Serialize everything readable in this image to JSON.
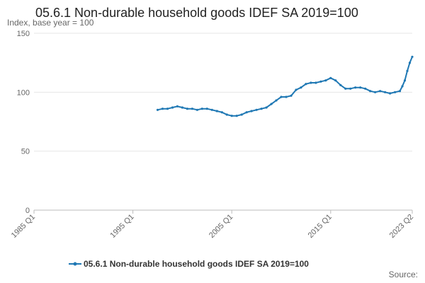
{
  "chart_data": {
    "type": "line",
    "title": "05.6.1 Non-durable household goods IDEF SA 2019=100",
    "subtitle": "Index, base year = 100",
    "ylabel": "Index, base year = 100",
    "xlabel": "",
    "ylim": [
      0,
      150
    ],
    "y_ticks": [
      0,
      50,
      100,
      150
    ],
    "x_range": [
      1985.0,
      2023.25
    ],
    "x_ticks": [
      {
        "label": "1985 Q1",
        "value": 1985.0
      },
      {
        "label": "1995 Q1",
        "value": 1995.0
      },
      {
        "label": "2005 Q1",
        "value": 2005.0
      },
      {
        "label": "2015 Q1",
        "value": 2015.0
      },
      {
        "label": "2023 Q2",
        "value": 2023.25
      }
    ],
    "grid": true,
    "legend_position": "bottom",
    "series": [
      {
        "name": "05.6.1 Non-durable household goods IDEF SA 2019=100",
        "color": "#1f78b4",
        "points": [
          [
            1997.5,
            85
          ],
          [
            1998.0,
            86
          ],
          [
            1998.5,
            86
          ],
          [
            1999.0,
            87
          ],
          [
            1999.5,
            88
          ],
          [
            2000.0,
            87
          ],
          [
            2000.5,
            86
          ],
          [
            2001.0,
            86
          ],
          [
            2001.5,
            85
          ],
          [
            2002.0,
            86
          ],
          [
            2002.5,
            86
          ],
          [
            2003.0,
            85
          ],
          [
            2003.5,
            84
          ],
          [
            2004.0,
            83
          ],
          [
            2004.5,
            81
          ],
          [
            2005.0,
            80
          ],
          [
            2005.5,
            80
          ],
          [
            2006.0,
            81
          ],
          [
            2006.5,
            83
          ],
          [
            2007.0,
            84
          ],
          [
            2007.5,
            85
          ],
          [
            2008.0,
            86
          ],
          [
            2008.5,
            87
          ],
          [
            2009.0,
            90
          ],
          [
            2009.5,
            93
          ],
          [
            2010.0,
            96
          ],
          [
            2010.5,
            96
          ],
          [
            2011.0,
            97
          ],
          [
            2011.5,
            102
          ],
          [
            2012.0,
            104
          ],
          [
            2012.5,
            107
          ],
          [
            2013.0,
            108
          ],
          [
            2013.5,
            108
          ],
          [
            2014.0,
            109
          ],
          [
            2014.5,
            110
          ],
          [
            2015.0,
            112
          ],
          [
            2015.5,
            110
          ],
          [
            2016.0,
            106
          ],
          [
            2016.5,
            103
          ],
          [
            2017.0,
            103
          ],
          [
            2017.5,
            104
          ],
          [
            2018.0,
            104
          ],
          [
            2018.5,
            103
          ],
          [
            2019.0,
            101
          ],
          [
            2019.5,
            100
          ],
          [
            2020.0,
            101
          ],
          [
            2020.5,
            100
          ],
          [
            2021.0,
            99
          ],
          [
            2021.5,
            100
          ],
          [
            2022.0,
            101
          ],
          [
            2022.25,
            105
          ],
          [
            2022.5,
            110
          ],
          [
            2022.75,
            118
          ],
          [
            2023.0,
            125
          ],
          [
            2023.25,
            130
          ]
        ]
      }
    ],
    "source": "Source:"
  }
}
